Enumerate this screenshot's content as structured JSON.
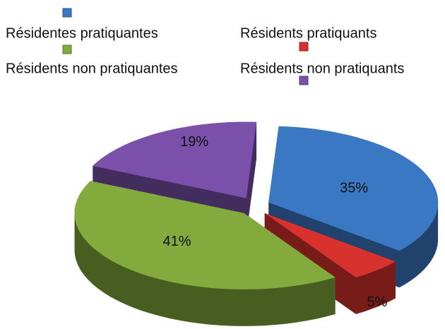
{
  "chart_data": {
    "type": "pie",
    "categories": [
      "Résidentes pratiquantes",
      "Résidents pratiquants",
      "Résidents non pratiquantes",
      "Résidents non pratiquants"
    ],
    "values": [
      35,
      5,
      41,
      19
    ],
    "value_labels": [
      "35%",
      "5%",
      "41%",
      "19%"
    ],
    "colors": [
      "#3b78c4",
      "#d8322e",
      "#82aa3c",
      "#7a50aa"
    ],
    "legend": "top"
  }
}
